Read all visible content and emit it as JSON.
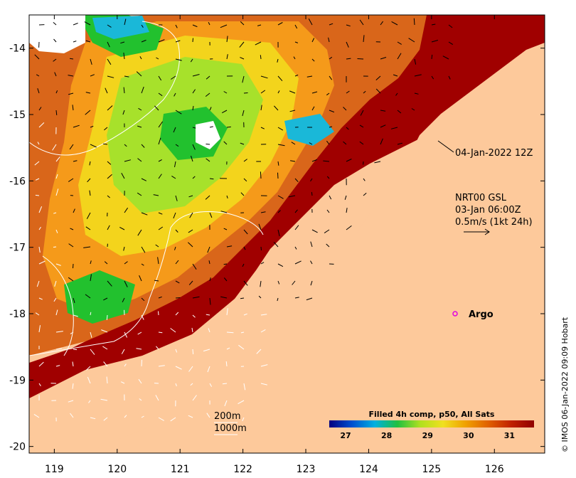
{
  "map": {
    "lon_range": [
      118.6,
      126.8
    ],
    "lat_range": [
      -20.1,
      -13.5
    ],
    "x_ticks": [
      "119",
      "120",
      "121",
      "122",
      "123",
      "124",
      "125",
      "126"
    ],
    "x_tick_values": [
      119,
      120,
      121,
      122,
      123,
      124,
      125,
      126
    ],
    "y_ticks": [
      "-14",
      "-15",
      "-16",
      "-17",
      "-18",
      "-19",
      "-20"
    ],
    "y_tick_values": [
      -14,
      -15,
      -16,
      -17,
      -18,
      -19,
      -20
    ],
    "colors": {
      "land": "#fdc99b",
      "hot": "#a00000",
      "warm": "#d9661a",
      "orange": "#f59a1a",
      "yellow": "#f3d41c",
      "lime": "#a7e12b",
      "green": "#22c12e",
      "cyan": "#1ab8d8",
      "blue": "#1253d6",
      "contour": "#ffffff",
      "argo": "#e000e0"
    }
  },
  "annotations": {
    "date": "04-Jan-2022 12Z",
    "current_line1": "NRT00 GSL",
    "current_line2": "03-Jan 06:00Z",
    "current_line3": "0.5m/s (1kt 24h)",
    "argo_label": "Argo",
    "contour_200": "200m",
    "contour_1000": "1000m"
  },
  "colorbar": {
    "title": "Filled 4h comp, p50, All Sats",
    "ticks": [
      "27",
      "28",
      "29",
      "30",
      "31"
    ],
    "tick_values": [
      27,
      28,
      29,
      30,
      31
    ],
    "range": [
      26.6,
      31.6
    ],
    "stops": [
      "#000080",
      "#0050d0",
      "#00b0e0",
      "#20c040",
      "#b0e020",
      "#f0e020",
      "#f0a000",
      "#e06000",
      "#c02000",
      "#900000"
    ]
  },
  "credit": "© IMOS 06-Jan-2022 09:09 Hobart"
}
